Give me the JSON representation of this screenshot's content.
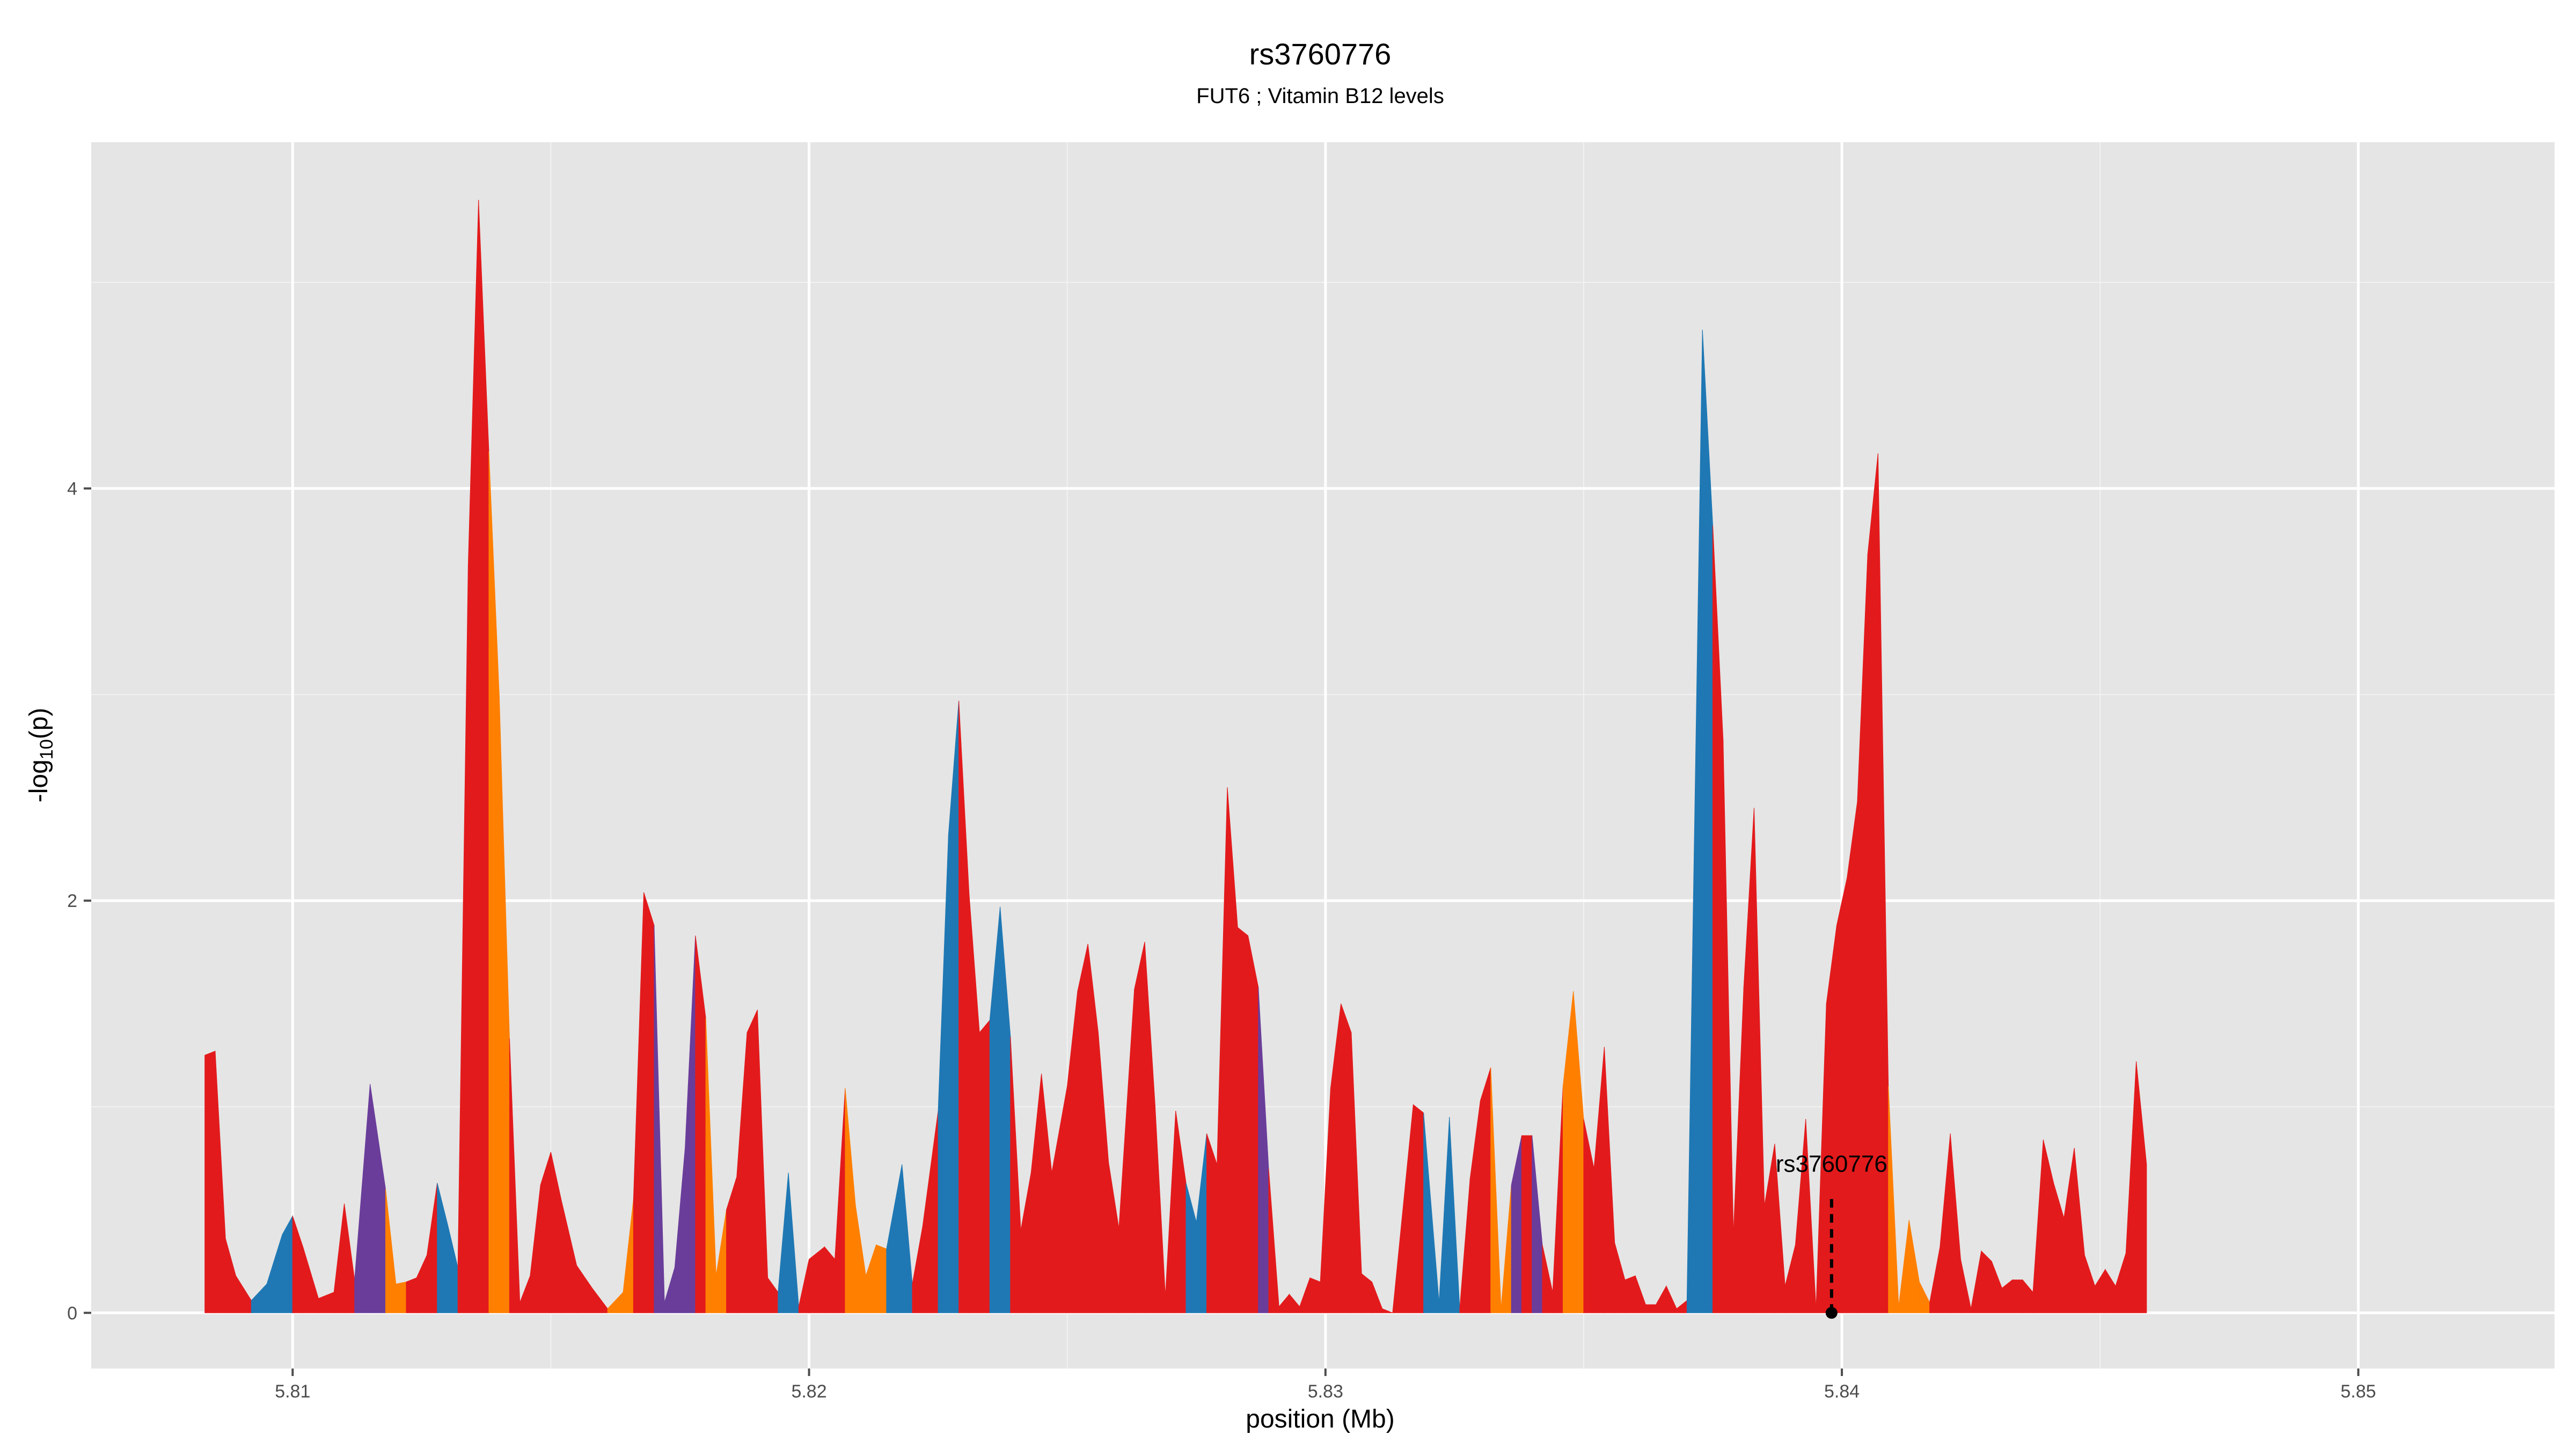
{
  "chart_data": {
    "type": "area",
    "title": "rs3760776",
    "subtitle": "FUT6 ; Vitamin B12 levels",
    "xlabel": "position (Mb)",
    "ylabel_main": "-log",
    "ylabel_sub": "10",
    "ylabel_tail": "(p)",
    "xlim": [
      5.8061,
      5.8538
    ],
    "ylim": [
      -0.27,
      5.68
    ],
    "xticks": [
      5.81,
      5.82,
      5.83,
      5.84,
      5.85
    ],
    "xtick_labels": [
      "5.81",
      "5.82",
      "5.83",
      "5.84",
      "5.85"
    ],
    "yticks": [
      0,
      2,
      4
    ],
    "ytick_labels": [
      "0",
      "2",
      "4"
    ],
    "grid": true,
    "colors": {
      "panel": "#e5e5e5",
      "grid_major": "#ffffff",
      "grid_minor": "#f2f2f2",
      "low": "#e31a1c",
      "mid_low": "#ff7f00",
      "mid": "#6a3d9a",
      "high": "#1f78b4"
    },
    "annotation": {
      "label": "rs3760776",
      "x": 5.8398,
      "y": 0.0
    },
    "points": [
      [
        5.8083,
        1.25,
        "low"
      ],
      [
        5.8085,
        1.27,
        "low"
      ],
      [
        5.8087,
        0.36,
        "low"
      ],
      [
        5.8089,
        0.18,
        "low"
      ],
      [
        5.8092,
        0.06,
        "low"
      ],
      [
        5.8095,
        0.14,
        "high"
      ],
      [
        5.8098,
        0.38,
        "high"
      ],
      [
        5.81,
        0.47,
        "high"
      ],
      [
        5.8102,
        0.32,
        "low"
      ],
      [
        5.8105,
        0.07,
        "low"
      ],
      [
        5.8108,
        0.1,
        "low"
      ],
      [
        5.811,
        0.53,
        "low"
      ],
      [
        5.8112,
        0.16,
        "low"
      ],
      [
        5.8115,
        1.11,
        "mid"
      ],
      [
        5.8118,
        0.6,
        "mid"
      ],
      [
        5.812,
        0.14,
        "mid_low"
      ],
      [
        5.8122,
        0.15,
        "mid_low"
      ],
      [
        5.8124,
        0.17,
        "low"
      ],
      [
        5.8126,
        0.28,
        "low"
      ],
      [
        5.8128,
        0.63,
        "low"
      ],
      [
        5.813,
        0.43,
        "high"
      ],
      [
        5.8132,
        0.22,
        "high"
      ],
      [
        5.8134,
        3.63,
        "low"
      ],
      [
        5.8136,
        5.4,
        "low"
      ],
      [
        5.8138,
        4.18,
        "low"
      ],
      [
        5.814,
        3.0,
        "mid_low"
      ],
      [
        5.8142,
        1.33,
        "mid_low"
      ],
      [
        5.8144,
        0.05,
        "low"
      ],
      [
        5.8146,
        0.18,
        "low"
      ],
      [
        5.8148,
        0.62,
        "low"
      ],
      [
        5.815,
        0.78,
        "low"
      ],
      [
        5.8152,
        0.55,
        "low"
      ],
      [
        5.8155,
        0.23,
        "low"
      ],
      [
        5.8158,
        0.12,
        "low"
      ],
      [
        5.8161,
        0.02,
        "low"
      ],
      [
        5.8164,
        0.1,
        "mid_low"
      ],
      [
        5.8166,
        0.55,
        "mid_low"
      ],
      [
        5.8168,
        2.04,
        "low"
      ],
      [
        5.817,
        1.88,
        "low"
      ],
      [
        5.8172,
        0.05,
        "mid"
      ],
      [
        5.8174,
        0.22,
        "mid"
      ],
      [
        5.8176,
        0.8,
        "mid"
      ],
      [
        5.8178,
        1.83,
        "mid"
      ],
      [
        5.818,
        1.43,
        "low"
      ],
      [
        5.8182,
        0.18,
        "mid_low"
      ],
      [
        5.8184,
        0.5,
        "mid_low"
      ],
      [
        5.8186,
        0.66,
        "low"
      ],
      [
        5.8188,
        1.36,
        "low"
      ],
      [
        5.819,
        1.47,
        "low"
      ],
      [
        5.8192,
        0.17,
        "low"
      ],
      [
        5.8194,
        0.1,
        "low"
      ],
      [
        5.8196,
        0.68,
        "high"
      ],
      [
        5.8198,
        0.03,
        "high"
      ],
      [
        5.82,
        0.26,
        "low"
      ],
      [
        5.8203,
        0.32,
        "low"
      ],
      [
        5.8205,
        0.26,
        "low"
      ],
      [
        5.8207,
        1.09,
        "low"
      ],
      [
        5.8209,
        0.52,
        "mid_low"
      ],
      [
        5.8211,
        0.18,
        "mid_low"
      ],
      [
        5.8213,
        0.33,
        "mid_low"
      ],
      [
        5.8215,
        0.31,
        "mid_low"
      ],
      [
        5.8218,
        0.72,
        "high"
      ],
      [
        5.822,
        0.14,
        "high"
      ],
      [
        5.8222,
        0.42,
        "low"
      ],
      [
        5.8225,
        0.98,
        "low"
      ],
      [
        5.8227,
        2.32,
        "high"
      ],
      [
        5.8229,
        2.97,
        "high"
      ],
      [
        5.8231,
        2.03,
        "low"
      ],
      [
        5.8233,
        1.36,
        "low"
      ],
      [
        5.8235,
        1.42,
        "low"
      ],
      [
        5.8237,
        1.97,
        "high"
      ],
      [
        5.8239,
        1.34,
        "high"
      ],
      [
        5.8241,
        0.4,
        "low"
      ],
      [
        5.8243,
        0.68,
        "low"
      ],
      [
        5.8245,
        1.16,
        "low"
      ],
      [
        5.8247,
        0.68,
        "low"
      ],
      [
        5.825,
        1.1,
        "low"
      ],
      [
        5.8252,
        1.56,
        "low"
      ],
      [
        5.8254,
        1.79,
        "low"
      ],
      [
        5.8256,
        1.36,
        "low"
      ],
      [
        5.8258,
        0.73,
        "low"
      ],
      [
        5.826,
        0.41,
        "low"
      ],
      [
        5.8263,
        1.57,
        "low"
      ],
      [
        5.8265,
        1.8,
        "low"
      ],
      [
        5.8267,
        1.01,
        "low"
      ],
      [
        5.8269,
        0.08,
        "low"
      ],
      [
        5.8271,
        0.98,
        "low"
      ],
      [
        5.8273,
        0.63,
        "low"
      ],
      [
        5.8275,
        0.44,
        "high"
      ],
      [
        5.8277,
        0.87,
        "high"
      ],
      [
        5.8279,
        0.72,
        "low"
      ],
      [
        5.8281,
        2.55,
        "low"
      ],
      [
        5.8283,
        1.87,
        "low"
      ],
      [
        5.8285,
        1.83,
        "low"
      ],
      [
        5.8287,
        1.58,
        "low"
      ],
      [
        5.8289,
        0.7,
        "mid"
      ],
      [
        5.8291,
        0.03,
        "low"
      ],
      [
        5.8293,
        0.09,
        "low"
      ],
      [
        5.8295,
        0.03,
        "low"
      ],
      [
        5.8297,
        0.17,
        "low"
      ],
      [
        5.8299,
        0.15,
        "low"
      ],
      [
        5.8301,
        1.09,
        "low"
      ],
      [
        5.8303,
        1.5,
        "low"
      ],
      [
        5.8305,
        1.36,
        "low"
      ],
      [
        5.8307,
        0.19,
        "low"
      ],
      [
        5.8309,
        0.15,
        "low"
      ],
      [
        5.8311,
        0.02,
        "low"
      ],
      [
        5.8313,
        0.0,
        "low"
      ],
      [
        5.8317,
        1.01,
        "low"
      ],
      [
        5.8319,
        0.97,
        "low"
      ],
      [
        5.8322,
        0.05,
        "high"
      ],
      [
        5.8324,
        0.95,
        "high"
      ],
      [
        5.8326,
        0.02,
        "high"
      ],
      [
        5.8328,
        0.65,
        "low"
      ],
      [
        5.833,
        1.03,
        "low"
      ],
      [
        5.8332,
        1.19,
        "low"
      ],
      [
        5.8334,
        0.02,
        "mid_low"
      ],
      [
        5.8336,
        0.62,
        "mid_low"
      ],
      [
        5.8338,
        0.86,
        "mid"
      ],
      [
        5.834,
        0.86,
        "low"
      ],
      [
        5.8342,
        0.33,
        "mid"
      ],
      [
        5.8344,
        0.1,
        "low"
      ],
      [
        5.8346,
        1.1,
        "low"
      ],
      [
        5.8348,
        1.56,
        "mid_low"
      ],
      [
        5.835,
        0.94,
        "mid_low"
      ],
      [
        5.8352,
        0.7,
        "low"
      ],
      [
        5.8354,
        1.29,
        "low"
      ],
      [
        5.8356,
        0.34,
        "low"
      ],
      [
        5.8358,
        0.16,
        "low"
      ],
      [
        5.836,
        0.18,
        "low"
      ],
      [
        5.8362,
        0.04,
        "low"
      ],
      [
        5.8364,
        0.04,
        "low"
      ],
      [
        5.8366,
        0.13,
        "low"
      ],
      [
        5.8368,
        0.02,
        "low"
      ],
      [
        5.837,
        0.06,
        "low"
      ],
      [
        5.8373,
        4.77,
        "high"
      ],
      [
        5.8375,
        3.82,
        "high"
      ],
      [
        5.8377,
        2.78,
        "low"
      ],
      [
        5.8379,
        0.38,
        "low"
      ],
      [
        5.8381,
        1.58,
        "low"
      ],
      [
        5.8383,
        2.45,
        "low"
      ],
      [
        5.8385,
        0.52,
        "low"
      ],
      [
        5.8387,
        0.82,
        "low"
      ],
      [
        5.8389,
        0.13,
        "low"
      ],
      [
        5.8391,
        0.33,
        "low"
      ],
      [
        5.8393,
        0.94,
        "low"
      ],
      [
        5.8395,
        0.02,
        "low"
      ],
      [
        5.8397,
        1.5,
        "low"
      ],
      [
        5.8399,
        1.88,
        "low"
      ],
      [
        5.8401,
        2.11,
        "low"
      ],
      [
        5.8403,
        2.48,
        "low"
      ],
      [
        5.8405,
        3.68,
        "low"
      ],
      [
        5.8407,
        4.17,
        "low"
      ],
      [
        5.8409,
        1.1,
        "low"
      ],
      [
        5.8411,
        0.03,
        "mid_low"
      ],
      [
        5.8413,
        0.45,
        "mid_low"
      ],
      [
        5.8415,
        0.15,
        "mid_low"
      ],
      [
        5.8417,
        0.05,
        "mid_low"
      ],
      [
        5.8419,
        0.32,
        "low"
      ],
      [
        5.8421,
        0.87,
        "low"
      ],
      [
        5.8423,
        0.26,
        "low"
      ],
      [
        5.8425,
        0.02,
        "low"
      ],
      [
        5.8427,
        0.3,
        "low"
      ],
      [
        5.8429,
        0.25,
        "low"
      ],
      [
        5.8431,
        0.12,
        "low"
      ],
      [
        5.8433,
        0.16,
        "low"
      ],
      [
        5.8435,
        0.16,
        "low"
      ],
      [
        5.8437,
        0.1,
        "low"
      ],
      [
        5.8439,
        0.84,
        "low"
      ],
      [
        5.8441,
        0.63,
        "low"
      ],
      [
        5.8443,
        0.46,
        "low"
      ],
      [
        5.8445,
        0.8,
        "low"
      ],
      [
        5.8447,
        0.28,
        "low"
      ],
      [
        5.8449,
        0.13,
        "low"
      ],
      [
        5.8451,
        0.21,
        "low"
      ],
      [
        5.8453,
        0.13,
        "low"
      ],
      [
        5.8455,
        0.29,
        "low"
      ],
      [
        5.8457,
        1.22,
        "low"
      ],
      [
        5.8459,
        0.72,
        "low"
      ]
    ]
  }
}
